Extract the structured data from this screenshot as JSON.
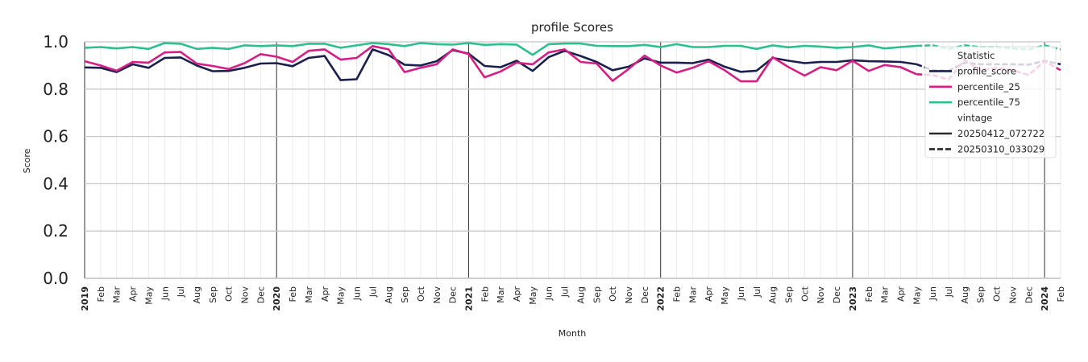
{
  "chart_data": {
    "type": "line",
    "title": "profile Scores",
    "xlabel": "Month",
    "ylabel": "Score",
    "ylim": [
      0.0,
      1.0
    ],
    "yticks": [
      "0.0",
      "0.2",
      "0.4",
      "0.6",
      "0.8",
      "1.0"
    ],
    "grid": true,
    "legend_position": "top-right",
    "categories": [
      "2019",
      "Feb",
      "Mar",
      "Apr",
      "May",
      "Jun",
      "Jul",
      "Aug",
      "Sep",
      "Oct",
      "Nov",
      "Dec",
      "2020",
      "Feb",
      "Mar",
      "Apr",
      "May",
      "Jun",
      "Jul",
      "Aug",
      "Sep",
      "Oct",
      "Nov",
      "Dec",
      "2021",
      "Feb",
      "Mar",
      "Apr",
      "May",
      "Jun",
      "Jul",
      "Aug",
      "Sep",
      "Oct",
      "Nov",
      "Dec",
      "2022",
      "Feb",
      "Mar",
      "Apr",
      "May",
      "Jun",
      "Jul",
      "Aug",
      "Sep",
      "Oct",
      "Nov",
      "Dec",
      "2023",
      "Feb",
      "Mar",
      "Apr",
      "May",
      "Jun",
      "Jul",
      "Aug",
      "Sep",
      "Oct",
      "Nov",
      "Dec",
      "2024",
      "Feb"
    ],
    "year_boundaries": [
      "2019",
      "2020",
      "2021",
      "2022",
      "2023",
      "2024"
    ],
    "legend": {
      "group_titles": [
        "Statistic",
        "vintage"
      ],
      "statistic_entries": [
        "profile_score",
        "percentile_25",
        "percentile_75"
      ],
      "vintage_entries": [
        "20250412_072722",
        "20250310_033029"
      ]
    },
    "series": [
      {
        "name": "profile_score",
        "vintage": "20250412_072722",
        "style": "solid",
        "color": "#1a1f4d",
        "values": [
          0.892,
          0.89,
          0.872,
          0.905,
          0.89,
          0.932,
          0.934,
          0.9,
          0.876,
          0.877,
          0.89,
          0.908,
          0.91,
          0.897,
          0.932,
          0.94,
          0.838,
          0.842,
          0.968,
          0.944,
          0.903,
          0.9,
          0.918,
          0.965,
          0.95,
          0.898,
          0.893,
          0.92,
          0.877,
          0.935,
          0.962,
          0.94,
          0.915,
          0.88,
          0.895,
          0.93,
          0.912,
          0.912,
          0.91,
          0.925,
          0.895,
          0.873,
          0.878,
          0.932,
          0.92,
          0.91,
          0.915,
          0.915,
          0.922,
          0.918,
          0.917,
          0.915,
          0.905,
          null,
          null,
          null,
          null,
          null,
          null,
          null,
          null,
          null
        ]
      },
      {
        "name": "profile_score",
        "vintage": "20250310_033029",
        "style": "dashed",
        "color": "#1a1f4d",
        "values": [
          null,
          null,
          null,
          null,
          null,
          null,
          null,
          null,
          null,
          null,
          null,
          null,
          null,
          null,
          null,
          null,
          null,
          null,
          null,
          null,
          null,
          null,
          null,
          null,
          null,
          null,
          null,
          null,
          null,
          null,
          null,
          null,
          null,
          null,
          null,
          null,
          null,
          null,
          null,
          null,
          null,
          null,
          null,
          null,
          null,
          null,
          null,
          null,
          null,
          null,
          null,
          null,
          0.905,
          0.88,
          0.878,
          0.912,
          0.905,
          0.905,
          0.905,
          0.903,
          0.92,
          0.905
        ]
      },
      {
        "name": "percentile_25",
        "vintage": "20250412_072722",
        "style": "solid",
        "color": "#d61f85",
        "values": [
          0.918,
          0.9,
          0.878,
          0.915,
          0.912,
          0.955,
          0.957,
          0.908,
          0.898,
          0.885,
          0.91,
          0.948,
          0.937,
          0.915,
          0.962,
          0.968,
          0.925,
          0.932,
          0.982,
          0.968,
          0.872,
          0.89,
          0.905,
          0.968,
          0.948,
          0.85,
          0.875,
          0.912,
          0.905,
          0.955,
          0.968,
          0.915,
          0.908,
          0.835,
          0.885,
          0.942,
          0.9,
          0.87,
          0.89,
          0.918,
          0.88,
          0.833,
          0.833,
          0.935,
          0.893,
          0.857,
          0.893,
          0.88,
          0.92,
          0.877,
          0.902,
          0.893,
          0.863,
          null,
          null,
          null,
          null,
          null,
          null,
          null,
          null,
          null
        ]
      },
      {
        "name": "percentile_25",
        "vintage": "20250310_033029",
        "style": "dashed",
        "color": "#d61f85",
        "values": [
          null,
          null,
          null,
          null,
          null,
          null,
          null,
          null,
          null,
          null,
          null,
          null,
          null,
          null,
          null,
          null,
          null,
          null,
          null,
          null,
          null,
          null,
          null,
          null,
          null,
          null,
          null,
          null,
          null,
          null,
          null,
          null,
          null,
          null,
          null,
          null,
          null,
          null,
          null,
          null,
          null,
          null,
          null,
          null,
          null,
          null,
          null,
          null,
          null,
          null,
          null,
          null,
          0.863,
          0.86,
          0.84,
          0.925,
          0.88,
          0.89,
          0.88,
          0.86,
          0.918,
          0.88
        ]
      },
      {
        "name": "percentile_75",
        "vintage": "20250412_072722",
        "style": "solid",
        "color": "#2dbf8c",
        "values": [
          0.975,
          0.978,
          0.972,
          0.978,
          0.97,
          0.995,
          0.992,
          0.97,
          0.975,
          0.97,
          0.985,
          0.982,
          0.985,
          0.982,
          0.992,
          0.992,
          0.975,
          0.985,
          0.995,
          0.99,
          0.982,
          0.995,
          0.99,
          0.988,
          0.995,
          0.987,
          0.99,
          0.988,
          0.945,
          0.99,
          0.993,
          0.993,
          0.983,
          0.982,
          0.982,
          0.987,
          0.978,
          0.99,
          0.978,
          0.978,
          0.983,
          0.983,
          0.97,
          0.985,
          0.977,
          0.983,
          0.98,
          0.975,
          0.978,
          0.985,
          0.972,
          0.978,
          0.983,
          null,
          null,
          null,
          null,
          null,
          null,
          null,
          null,
          null
        ]
      },
      {
        "name": "percentile_75",
        "vintage": "20250310_033029",
        "style": "dashed",
        "color": "#2dbf8c",
        "values": [
          null,
          null,
          null,
          null,
          null,
          null,
          null,
          null,
          null,
          null,
          null,
          null,
          null,
          null,
          null,
          null,
          null,
          null,
          null,
          null,
          null,
          null,
          null,
          null,
          null,
          null,
          null,
          null,
          null,
          null,
          null,
          null,
          null,
          null,
          null,
          null,
          null,
          null,
          null,
          null,
          null,
          null,
          null,
          null,
          null,
          null,
          null,
          null,
          null,
          null,
          null,
          null,
          0.983,
          0.985,
          0.97,
          0.985,
          0.978,
          0.978,
          0.972,
          0.968,
          0.985,
          0.968
        ]
      }
    ]
  }
}
